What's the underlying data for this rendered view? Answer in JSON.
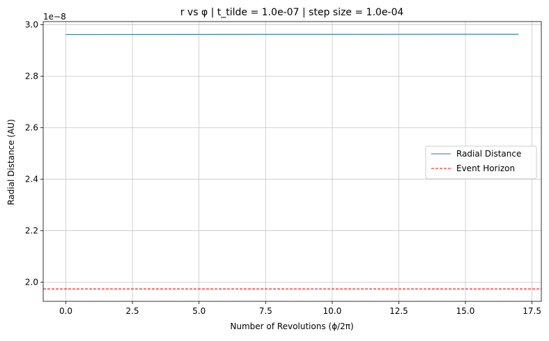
{
  "chart_data": {
    "type": "line",
    "title": "r vs φ | t_tilde = 1.0e-07 | step size = 1.0e-04",
    "xlabel": "Number of Revolutions (ϕ/2π)",
    "ylabel": "Radial Distance (AU)",
    "y_offset_text": "1e−8",
    "xlim": [
      -0.85,
      17.85
    ],
    "ylim": [
      1.926,
      3.012
    ],
    "y_multiplier": 1e-08,
    "x_ticks": [
      0.0,
      2.5,
      5.0,
      7.5,
      10.0,
      12.5,
      15.0,
      17.5
    ],
    "x_tick_labels": [
      "0.0",
      "2.5",
      "5.0",
      "7.5",
      "10.0",
      "12.5",
      "15.0",
      "17.5"
    ],
    "y_ticks": [
      2.0,
      2.2,
      2.4,
      2.6,
      2.8,
      3.0
    ],
    "y_tick_labels": [
      "2.0",
      "2.2",
      "2.4",
      "2.6",
      "2.8",
      "3.0"
    ],
    "grid": true,
    "legend_placement": "center-right",
    "series": [
      {
        "name": "Radial Distance",
        "color": "#1f77b4",
        "style": "solid",
        "x": [
          0,
          17
        ],
        "y": [
          2.962,
          2.963
        ]
      },
      {
        "name": "Event Horizon",
        "color": "#ff0000",
        "style": "dashed",
        "hline": 1.974
      }
    ]
  }
}
